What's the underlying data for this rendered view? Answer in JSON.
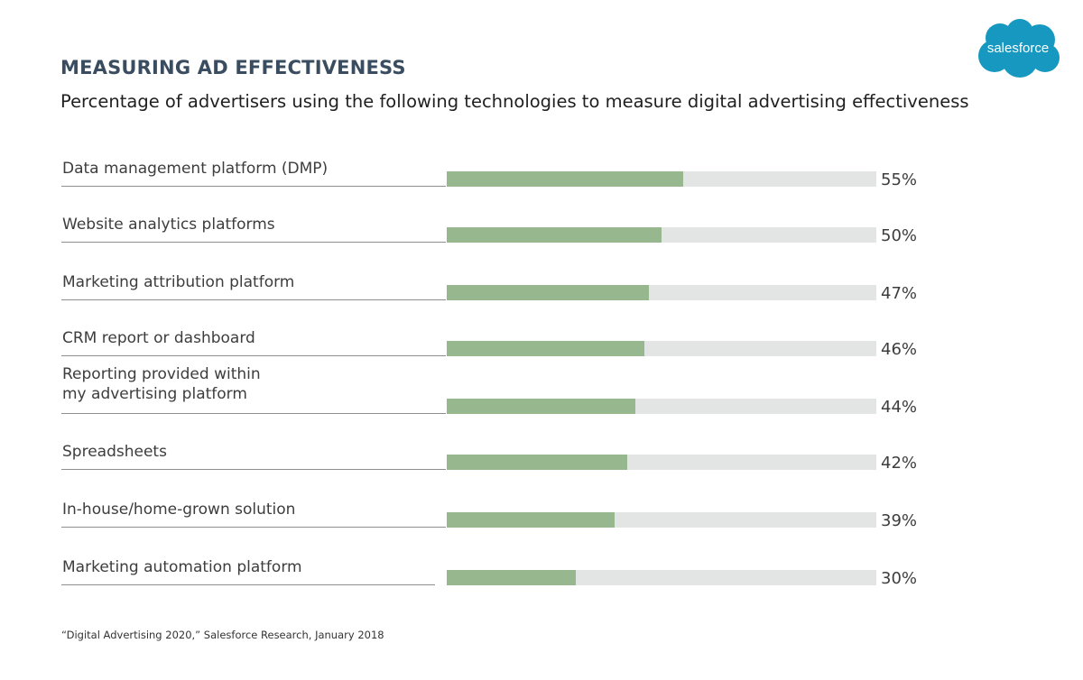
{
  "header": {
    "title": "MEASURING AD EFFECTIVENESS",
    "subtitle": "Percentage of advertisers using the following technologies to  measure digital advertising effectiveness"
  },
  "logo": {
    "text": "salesforce",
    "color": "#1798c1",
    "icon": "cloud-logo"
  },
  "chart_data": {
    "type": "bar",
    "orientation": "horizontal",
    "categories": [
      "Data management platform (DMP)",
      "Website analytics platforms",
      "Marketing attribution platform",
      "CRM report or dashboard",
      "Reporting provided within\nmy advertising platform",
      "Spreadsheets",
      "In-house/home-grown solution",
      "Marketing automation platform"
    ],
    "values": [
      55,
      50,
      47,
      46,
      44,
      42,
      39,
      30
    ],
    "value_labels": [
      "55%",
      "50%",
      "47%",
      "46%",
      "44%",
      "42%",
      "39%",
      "30%"
    ],
    "xlim": [
      0,
      100
    ],
    "unit": "%",
    "bar_color": "#97b88f",
    "track_color": "#e2e5e4",
    "grid": false,
    "legend": "none"
  },
  "footer": {
    "source": "“Digital Advertising 2020,” Salesforce Research, January 2018"
  }
}
